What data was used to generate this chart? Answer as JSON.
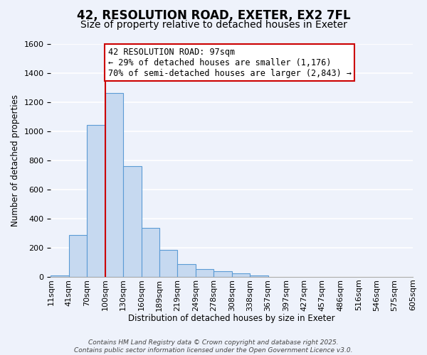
{
  "title": "42, RESOLUTION ROAD, EXETER, EX2 7FL",
  "subtitle": "Size of property relative to detached houses in Exeter",
  "xlabel": "Distribution of detached houses by size in Exeter",
  "ylabel": "Number of detached properties",
  "bin_labels": [
    "11sqm",
    "41sqm",
    "70sqm",
    "100sqm",
    "130sqm",
    "160sqm",
    "189sqm",
    "219sqm",
    "249sqm",
    "278sqm",
    "308sqm",
    "338sqm",
    "367sqm",
    "397sqm",
    "427sqm",
    "457sqm",
    "486sqm",
    "516sqm",
    "546sqm",
    "575sqm",
    "605sqm"
  ],
  "bar_heights": [
    10,
    285,
    1040,
    1260,
    760,
    335,
    185,
    85,
    52,
    38,
    22,
    8,
    2,
    0,
    0,
    0,
    0,
    0,
    0,
    0
  ],
  "bar_color": "#c6d9f0",
  "bar_edge_color": "#5b9bd5",
  "property_line_x": 3.0,
  "property_line_color": "#cc0000",
  "annotation_text": "42 RESOLUTION ROAD: 97sqm\n← 29% of detached houses are smaller (1,176)\n70% of semi-detached houses are larger (2,843) →",
  "annotation_box_color": "#ffffff",
  "annotation_box_edge_color": "#cc0000",
  "ylim": [
    0,
    1600
  ],
  "yticks": [
    0,
    200,
    400,
    600,
    800,
    1000,
    1200,
    1400,
    1600
  ],
  "footer_line1": "Contains HM Land Registry data © Crown copyright and database right 2025.",
  "footer_line2": "Contains public sector information licensed under the Open Government Licence v3.0.",
  "background_color": "#eef2fb",
  "grid_color": "#ffffff",
  "title_fontsize": 12,
  "subtitle_fontsize": 10,
  "axis_label_fontsize": 8.5,
  "tick_fontsize": 8,
  "annotation_fontsize": 8.5,
  "footer_fontsize": 6.5
}
